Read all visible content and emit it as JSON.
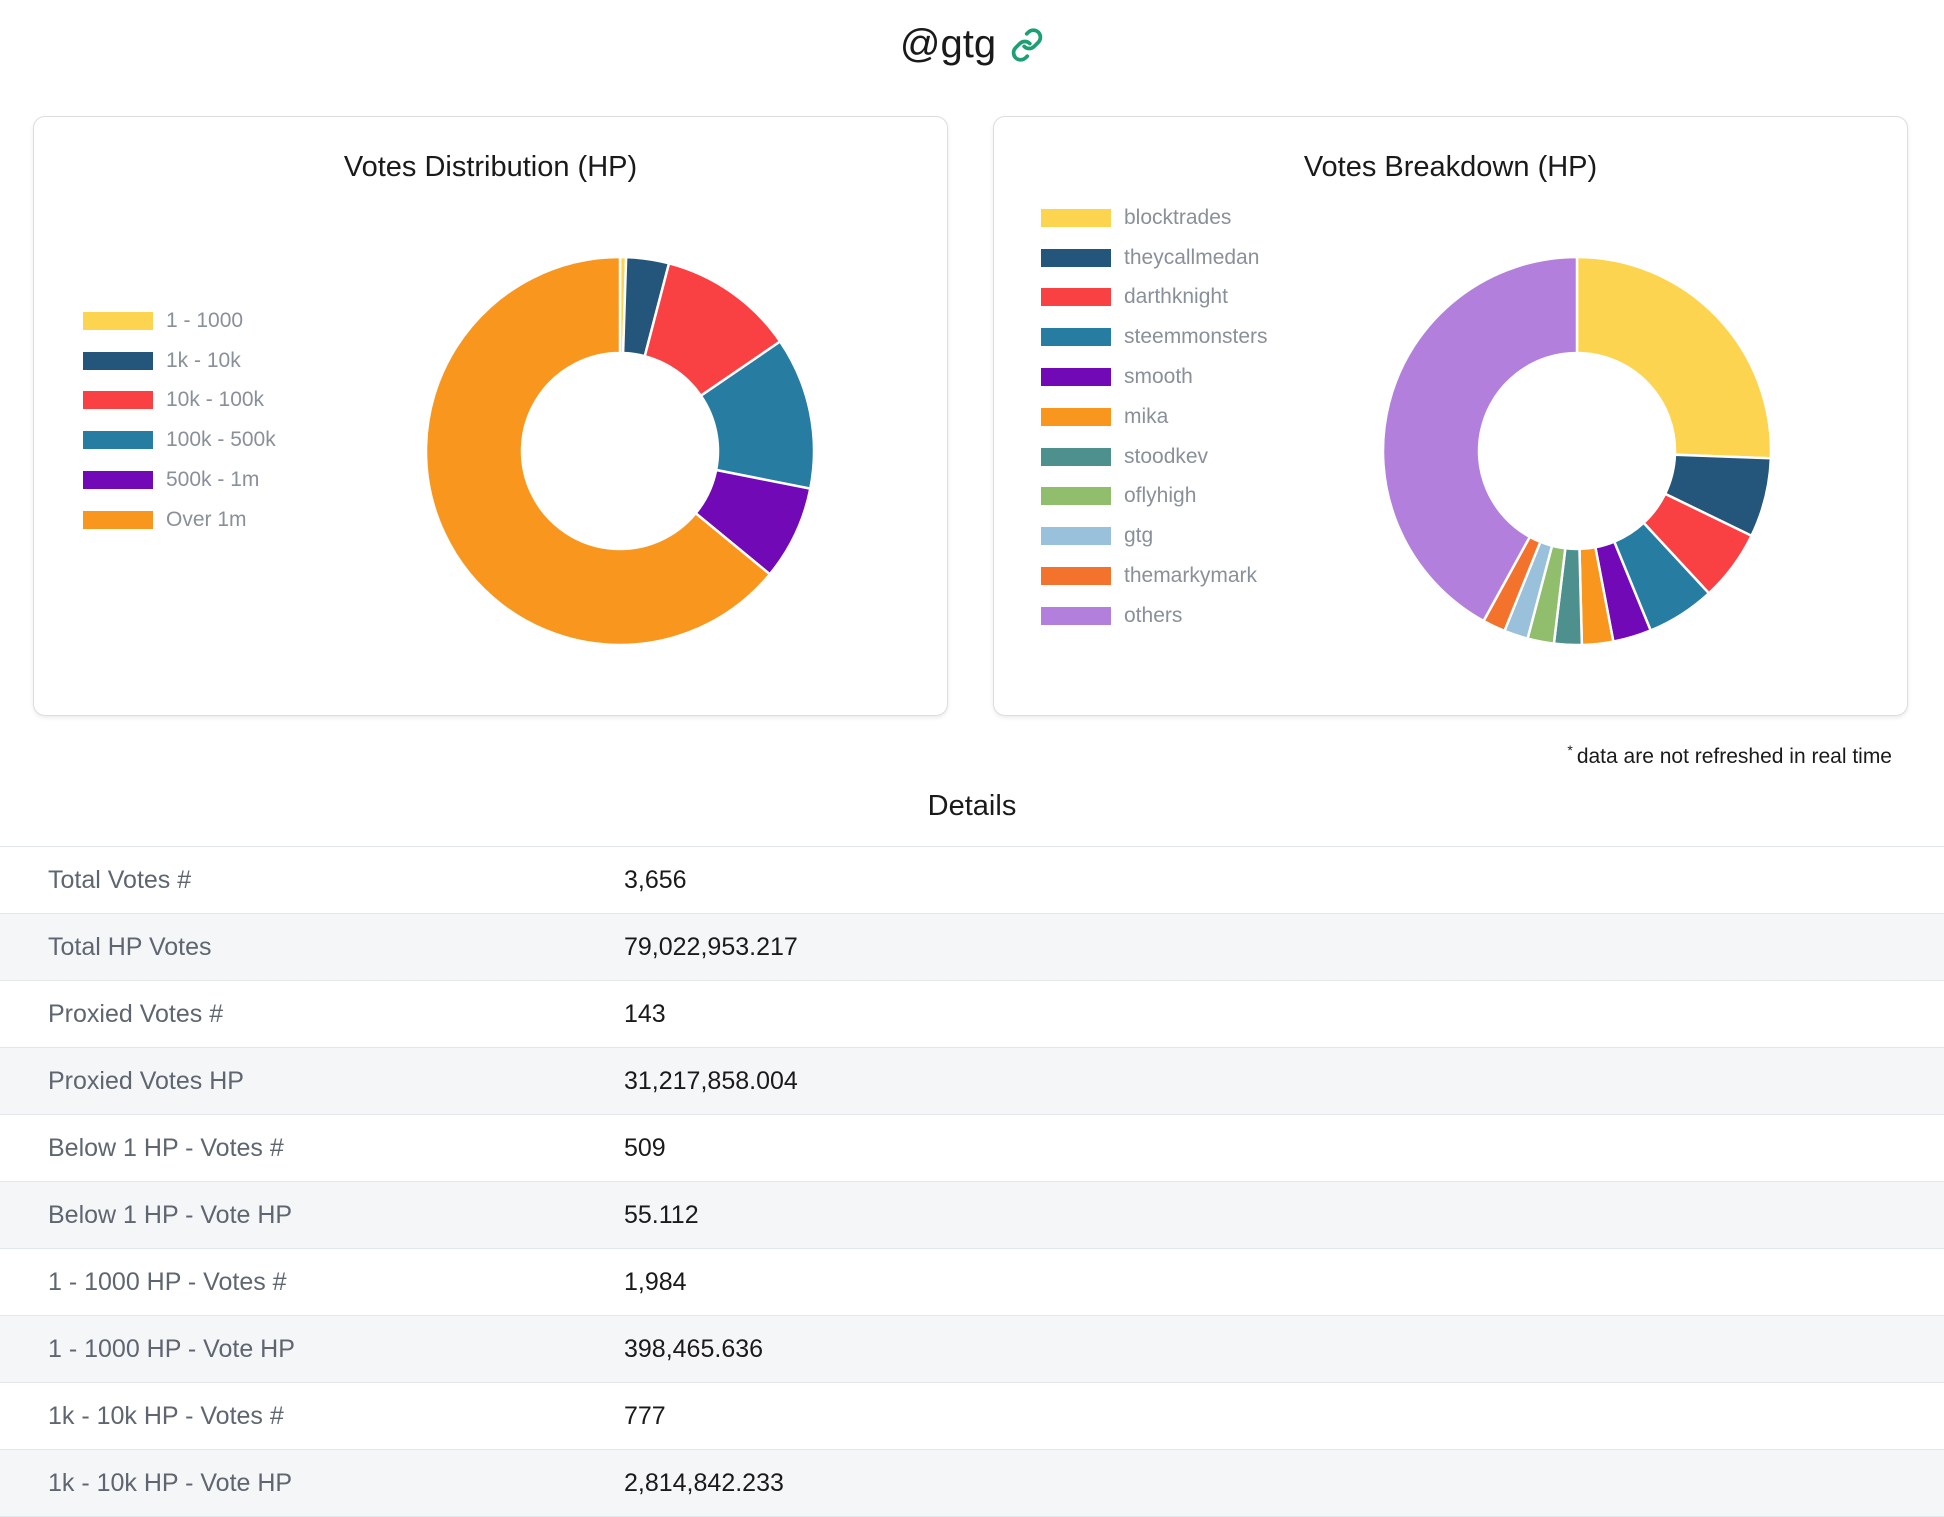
{
  "header": {
    "title": "@gtg",
    "link_icon": "link-icon",
    "link_color": "#1e9e73"
  },
  "distribution": {
    "title": "Votes Distribution (HP)",
    "legend": [
      {
        "label": "1 - 1000",
        "color": "#fdd44f"
      },
      {
        "label": "1k - 10k",
        "color": "#23567a"
      },
      {
        "label": "10k - 100k",
        "color": "#f94144"
      },
      {
        "label": "100k - 500k",
        "color": "#277da1"
      },
      {
        "label": "500k - 1m",
        "color": "#7209b7"
      },
      {
        "label": "Over 1m",
        "color": "#f8961e"
      }
    ]
  },
  "breakdown": {
    "title": "Votes Breakdown (HP)",
    "legend": [
      {
        "label": "blocktrades",
        "color": "#fdd44f"
      },
      {
        "label": "theycallmedan",
        "color": "#23567a"
      },
      {
        "label": "darthknight",
        "color": "#f94144"
      },
      {
        "label": "steemmonsters",
        "color": "#277da1"
      },
      {
        "label": "smooth",
        "color": "#7209b7"
      },
      {
        "label": "mika",
        "color": "#f8961e"
      },
      {
        "label": "stoodkev",
        "color": "#4d908e"
      },
      {
        "label": "oflyhigh",
        "color": "#90be6d"
      },
      {
        "label": "gtg",
        "color": "#9ac1dc"
      },
      {
        "label": "themarkymark",
        "color": "#f3722c"
      },
      {
        "label": "others",
        "color": "#b280dc"
      }
    ]
  },
  "chart_data": [
    {
      "type": "pie",
      "variant": "donut",
      "title": "Votes Distribution (HP)",
      "legend_position": "left",
      "categories": [
        "1 - 1000",
        "1k - 10k",
        "10k - 100k",
        "100k - 500k",
        "500k - 1m",
        "Over 1m"
      ],
      "values": [
        398465.636,
        2814842.233,
        9000000,
        10000000,
        6200000,
        50609645.348
      ],
      "colors": [
        "#fdd44f",
        "#23567a",
        "#f94144",
        "#277da1",
        "#7209b7",
        "#f8961e"
      ]
    },
    {
      "type": "pie",
      "variant": "donut",
      "title": "Votes Breakdown (HP)",
      "legend_position": "left",
      "categories": [
        "blocktrades",
        "theycallmedan",
        "darthknight",
        "steemmonsters",
        "smooth",
        "mika",
        "stoodkev",
        "oflyhigh",
        "gtg",
        "themarkymark",
        "others"
      ],
      "values": [
        25.6,
        6.6,
        5.9,
        5.7,
        3.2,
        2.6,
        2.3,
        2.2,
        2.0,
        1.9,
        42.0
      ],
      "colors": [
        "#fdd44f",
        "#23567a",
        "#f94144",
        "#277da1",
        "#7209b7",
        "#f8961e",
        "#4d908e",
        "#90be6d",
        "#9ac1dc",
        "#f3722c",
        "#b280dc"
      ]
    }
  ],
  "note": {
    "marker": "*",
    "text": "data are not refreshed in real time"
  },
  "details": {
    "title": "Details",
    "rows": [
      {
        "label": "Total Votes #",
        "value": "3,656"
      },
      {
        "label": "Total HP Votes",
        "value": "79,022,953.217"
      },
      {
        "label": "Proxied Votes #",
        "value": "143"
      },
      {
        "label": "Proxied Votes HP",
        "value": "31,217,858.004"
      },
      {
        "label": "Below 1 HP - Votes #",
        "value": "509"
      },
      {
        "label": "Below 1 HP - Vote HP",
        "value": "55.112"
      },
      {
        "label": "1 - 1000 HP - Votes #",
        "value": "1,984"
      },
      {
        "label": "1 - 1000 HP - Vote HP",
        "value": "398,465.636"
      },
      {
        "label": "1k - 10k HP - Votes #",
        "value": "777"
      },
      {
        "label": "1k - 10k HP - Vote HP",
        "value": "2,814,842.233"
      }
    ]
  }
}
